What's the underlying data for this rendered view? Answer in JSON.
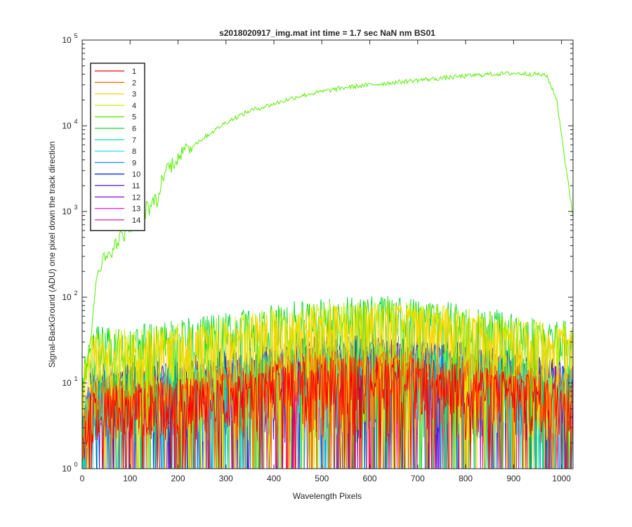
{
  "chart_data": {
    "type": "line",
    "title": "s2018020917_img.mat int time = 1.7 sec  NaN nm BS01",
    "xlabel": "Wavelength Pixels",
    "ylabel": "Signal-BackGround (ADU) one pixel down the track direction",
    "xlim": [
      0,
      1024
    ],
    "ylim": [
      1,
      100000
    ],
    "yscale": "log",
    "grid": false,
    "legend_position": "top-left",
    "x_ticks": [
      0,
      100,
      200,
      300,
      400,
      500,
      600,
      700,
      800,
      900,
      1000
    ],
    "x_tick_labels": [
      "0",
      "100",
      "200",
      "300",
      "400",
      "500",
      "600",
      "700",
      "800",
      "900",
      "1000"
    ],
    "y_ticks": [
      1,
      10,
      100,
      1000,
      10000,
      100000
    ],
    "y_tick_labels": [
      {
        "base": "10",
        "exp": "0"
      },
      {
        "base": "10",
        "exp": "1"
      },
      {
        "base": "10",
        "exp": "2"
      },
      {
        "base": "10",
        "exp": "3"
      },
      {
        "base": "10",
        "exp": "4"
      },
      {
        "base": "10",
        "exp": "5"
      }
    ],
    "series": [
      {
        "name": "1",
        "color": "#ff0000",
        "role": "noise",
        "approx_level": 10
      },
      {
        "name": "2",
        "color": "#ff6a00",
        "role": "noise",
        "approx_level": 12
      },
      {
        "name": "3",
        "color": "#ffd400",
        "role": "noise",
        "approx_level": 40
      },
      {
        "name": "4",
        "color": "#c8ee00",
        "role": "noise",
        "approx_level": 45
      },
      {
        "name": "5",
        "color": "#55ee00",
        "role": "signal",
        "x": [
          0,
          20,
          30,
          50,
          80,
          100,
          130,
          150,
          160,
          170,
          200,
          250,
          300,
          350,
          400,
          450,
          500,
          550,
          600,
          650,
          700,
          750,
          800,
          850,
          900,
          950,
          970,
          990,
          1000,
          1010,
          1024
        ],
        "y": [
          8,
          40,
          200,
          300,
          500,
          700,
          1000,
          1300,
          1500,
          2800,
          4500,
          7000,
          11000,
          15000,
          18000,
          22000,
          25000,
          28000,
          30000,
          32000,
          34000,
          36000,
          38000,
          40000,
          41000,
          40000,
          38000,
          20000,
          8000,
          3000,
          900
        ]
      },
      {
        "name": "6",
        "color": "#18d83a",
        "role": "noise",
        "approx_level": 50
      },
      {
        "name": "7",
        "color": "#14e8a8",
        "role": "noise",
        "approx_level": 15
      },
      {
        "name": "8",
        "color": "#22e0f0",
        "role": "noise",
        "approx_level": 12
      },
      {
        "name": "9",
        "color": "#1a90f0",
        "role": "noise",
        "approx_level": 14
      },
      {
        "name": "10",
        "color": "#0a2aee",
        "role": "noise",
        "approx_level": 18
      },
      {
        "name": "11",
        "color": "#4a14e0",
        "role": "noise",
        "approx_level": 16
      },
      {
        "name": "12",
        "color": "#9a14e8",
        "role": "noise",
        "approx_level": 14
      },
      {
        "name": "13",
        "color": "#ee14ee",
        "role": "noise",
        "approx_level": 14
      },
      {
        "name": "14",
        "color": "#ee1490",
        "role": "noise",
        "approx_level": 12
      }
    ]
  }
}
